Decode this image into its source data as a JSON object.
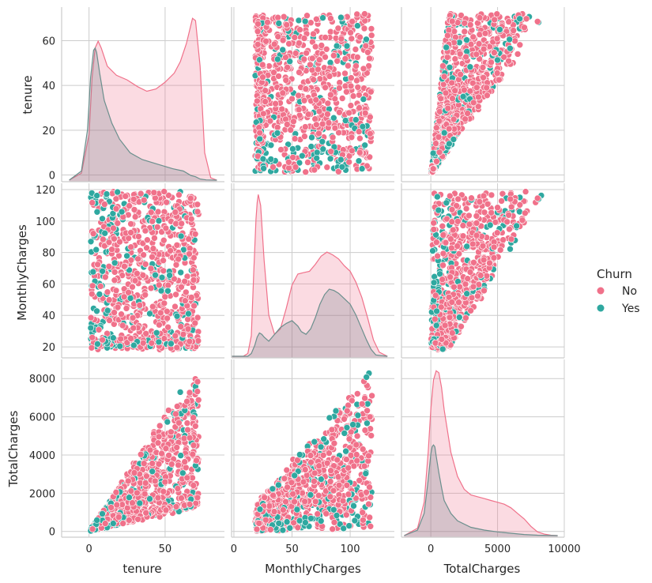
{
  "figure": {
    "type": "pairplot",
    "variables": [
      "tenure",
      "MonthlyCharges",
      "TotalCharges"
    ],
    "hue": "Churn"
  },
  "legend": {
    "title": "Churn",
    "entries": [
      {
        "label": "No",
        "color": "#f0718a"
      },
      {
        "label": "Yes",
        "color": "#2fa8a0"
      }
    ]
  },
  "colors": {
    "no": "#f0718a",
    "yes": "#2fa8a0",
    "grid": "#cccccc",
    "spine": "#cccccc"
  },
  "chart_data": {
    "type": "pairplot",
    "axes": {
      "tenure": {
        "range": [
          -18,
          89
        ],
        "ticks": [
          0,
          50
        ],
        "tick_labels": [
          "0",
          "50"
        ]
      },
      "tenure_y": {
        "range": [
          -3,
          75
        ],
        "ticks": [
          0,
          20,
          40,
          60
        ],
        "tick_labels": [
          "0",
          "20",
          "40",
          "60"
        ]
      },
      "MonthlyCharges": {
        "range": [
          -2,
          138
        ],
        "ticks": [
          0,
          50,
          100
        ],
        "tick_labels": [
          "0",
          "50",
          "100"
        ]
      },
      "MonthlyCharges_y": {
        "range": [
          13,
          124
        ],
        "ticks": [
          20,
          40,
          60,
          80,
          100,
          120
        ],
        "tick_labels": [
          "20",
          "40",
          "60",
          "80",
          "100",
          "120"
        ]
      },
      "TotalCharges": {
        "range": [
          -2200,
          10000
        ],
        "ticks": [
          0,
          5000,
          10000
        ],
        "tick_labels": [
          "0",
          "5000",
          "10000"
        ]
      },
      "TotalCharges_y": {
        "range": [
          -300,
          9000
        ],
        "ticks": [
          0,
          2000,
          4000,
          6000,
          8000
        ],
        "tick_labels": [
          "0",
          "2000",
          "4000",
          "6000",
          "8000"
        ]
      }
    },
    "kde": {
      "tenure": {
        "No": {
          "x": [
            -13,
            -5,
            0,
            2,
            4,
            6,
            8,
            12,
            18,
            25,
            32,
            38,
            44,
            50,
            56,
            60,
            64,
            68,
            70,
            73,
            76,
            80,
            84
          ],
          "y": [
            0,
            3,
            20,
            45,
            58,
            61,
            58,
            50,
            46,
            44,
            41,
            39,
            40,
            43,
            47,
            52,
            60,
            71,
            70,
            50,
            12,
            1,
            0
          ]
        },
        "Yes": {
          "x": [
            -13,
            -5,
            -1,
            1,
            3,
            4,
            5,
            7,
            10,
            15,
            20,
            27,
            35,
            45,
            55,
            62,
            67,
            70,
            73,
            77,
            84
          ],
          "y": [
            0,
            4,
            22,
            45,
            57,
            58,
            56,
            47,
            35,
            25,
            18,
            12,
            9,
            7,
            5,
            4,
            2,
            1.5,
            0.5,
            0.1,
            0
          ]
        }
      },
      "MonthlyCharges": {
        "No": {
          "x": [
            -2,
            8,
            12,
            15,
            17,
            19,
            20,
            21,
            23,
            26,
            30,
            35,
            40,
            45,
            50,
            55,
            60,
            65,
            70,
            75,
            80,
            85,
            90,
            95,
            100,
            105,
            110,
            115,
            120,
            125,
            132
          ],
          "y": [
            0,
            0,
            2,
            15,
            60,
            100,
            112,
            118,
            110,
            70,
            30,
            16,
            20,
            35,
            52,
            60,
            61,
            62,
            67,
            73,
            76,
            74,
            71,
            66,
            62,
            54,
            43,
            28,
            12,
            3,
            0
          ]
        },
        "Yes": {
          "x": [
            -2,
            12,
            15,
            18,
            20,
            22,
            24,
            26,
            30,
            35,
            40,
            45,
            50,
            55,
            58,
            62,
            66,
            70,
            74,
            78,
            82,
            86,
            90,
            95,
            100,
            105,
            110,
            114,
            118,
            122,
            132
          ],
          "y": [
            0,
            0,
            2,
            8,
            14,
            17,
            16,
            14,
            11,
            16,
            21,
            24,
            26,
            22,
            18,
            16,
            20,
            28,
            38,
            45,
            49,
            48,
            46,
            42,
            38,
            30,
            20,
            12,
            5,
            1,
            0
          ]
        }
      },
      "TotalCharges": {
        "No": {
          "x": [
            -2000,
            -1000,
            -500,
            -200,
            0,
            200,
            400,
            600,
            800,
            1000,
            1500,
            2000,
            2500,
            3000,
            3500,
            4000,
            4500,
            5000,
            5500,
            6000,
            6500,
            7000,
            7500,
            8000,
            8500,
            9000,
            9500
          ],
          "y": [
            0,
            4,
            18,
            45,
            68,
            84,
            89,
            88,
            80,
            68,
            45,
            32,
            25,
            22,
            21,
            20,
            19,
            18,
            17,
            15,
            12,
            9,
            5,
            2,
            0.8,
            0.2,
            0
          ]
        },
        "Yes": {
          "x": [
            -2000,
            -1000,
            -500,
            -200,
            0,
            100,
            200,
            300,
            400,
            600,
            800,
            1000,
            1500,
            2000,
            3000,
            4000,
            5000,
            6000,
            7000,
            8000,
            9500
          ],
          "y": [
            0,
            3,
            12,
            30,
            44,
            48,
            49,
            48,
            43,
            34,
            26,
            19,
            12,
            8,
            4.5,
            3,
            2,
            1.3,
            0.6,
            0.2,
            0
          ]
        }
      }
    },
    "scatter": {
      "tenure_MonthlyCharges": {
        "x_range": [
          1,
          72
        ],
        "y_range": [
          18.25,
          118.75
        ]
      },
      "tenure_TotalCharges": {
        "x_range": [
          1,
          72
        ],
        "y_range": [
          18.8,
          8684.8
        ]
      },
      "MonthlyCharges_TotalCharges": {
        "x_range": [
          18.25,
          118.75
        ],
        "y_range": [
          18.8,
          8684.8
        ]
      }
    }
  }
}
